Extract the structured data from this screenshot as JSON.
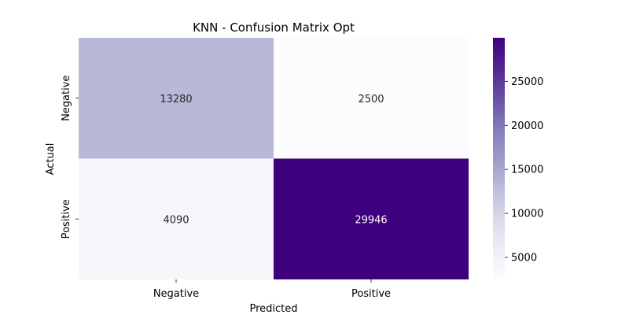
{
  "chart_data": {
    "type": "heatmap",
    "title": "KNN - Confusion Matrix Opt",
    "xlabel": "Predicted",
    "ylabel": "Actual",
    "x_categories": [
      "Negative",
      "Positive"
    ],
    "y_categories": [
      "Negative",
      "Positive"
    ],
    "values": [
      [
        13280,
        2500
      ],
      [
        4090,
        29946
      ]
    ],
    "colormap": "Purples",
    "colorbar": {
      "min": 2500,
      "max": 29946,
      "ticks": [
        "5000",
        "10000",
        "15000",
        "20000",
        "25000"
      ]
    }
  }
}
